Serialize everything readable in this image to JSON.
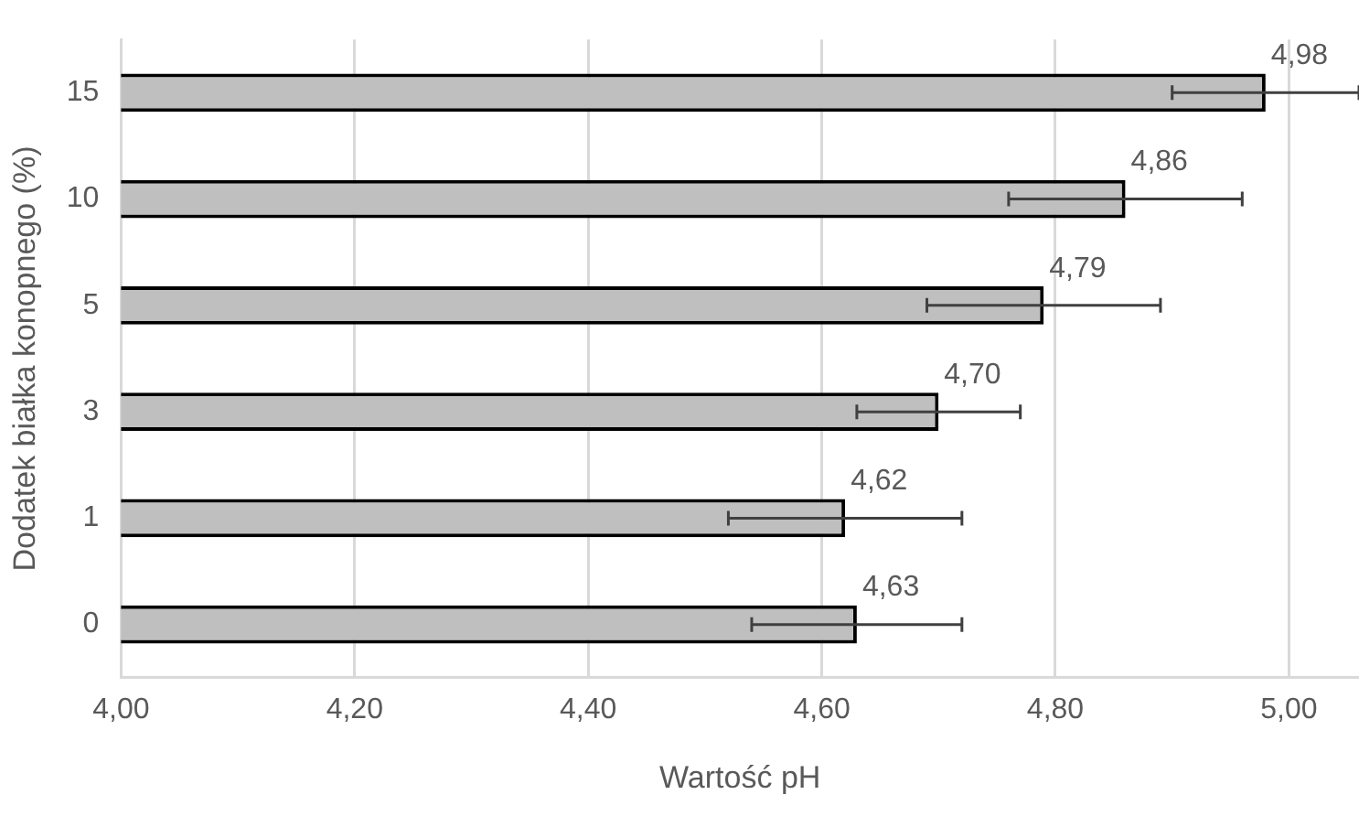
{
  "chart_data": {
    "type": "bar",
    "orientation": "horizontal",
    "xlabel": "Wartość pH",
    "ylabel": "Dodatek białka konopnego (%)",
    "categories": [
      "15",
      "10",
      "5",
      "3",
      "1",
      "0"
    ],
    "values": [
      4.98,
      4.86,
      4.79,
      4.7,
      4.62,
      4.63
    ],
    "errors": [
      0.08,
      0.1,
      0.1,
      0.07,
      0.1,
      0.09
    ],
    "value_labels": [
      "4,98",
      "4,86",
      "4,79",
      "4,70",
      "4,62",
      "4,63"
    ],
    "color": "#bfbfbf",
    "xlim": [
      4,
      5.06
    ],
    "xticks": [
      {
        "value": 4,
        "label": "4,00"
      },
      {
        "value": 4.2,
        "label": "4,20"
      },
      {
        "value": 4.4,
        "label": "4,40"
      },
      {
        "value": 4.6,
        "label": "4,60"
      },
      {
        "value": 4.8,
        "label": "4,80"
      },
      {
        "value": 5,
        "label": "5,00"
      }
    ],
    "grid": "x",
    "legend": false
  }
}
